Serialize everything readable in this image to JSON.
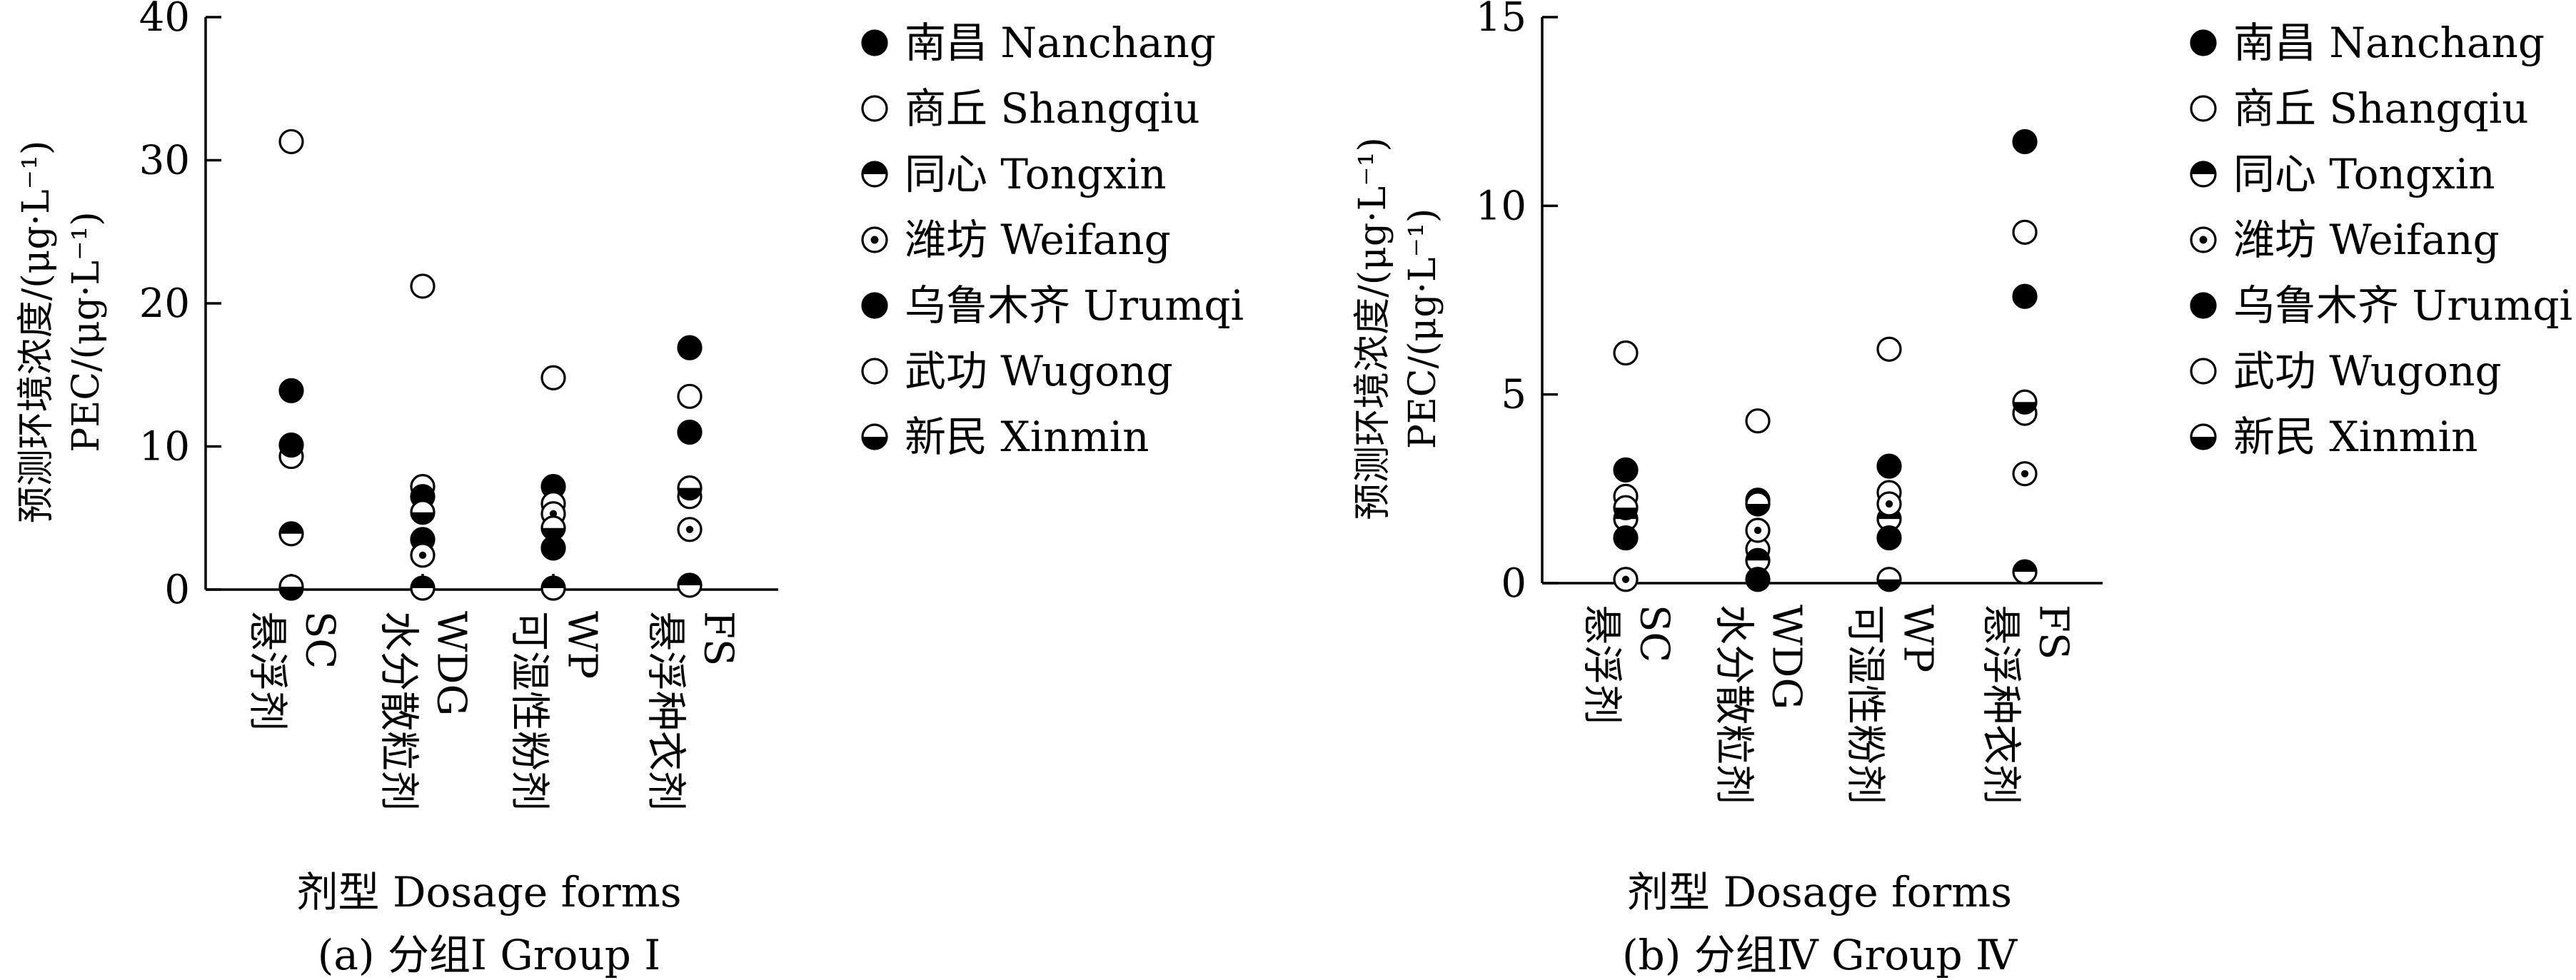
{
  "legend": [
    {
      "label": "南昌 Nanchang",
      "marker": "filled"
    },
    {
      "label": "商丘 Shangqiu",
      "marker": "open"
    },
    {
      "label": "同心 Tongxin",
      "marker": "half-top-filled"
    },
    {
      "label": "潍坊 Weifang",
      "marker": "dot-center"
    },
    {
      "label": "乌鲁木齐 Urumqi",
      "marker": "filled"
    },
    {
      "label": "武功 Wugong",
      "marker": "open"
    },
    {
      "label": "新民 Xinmin",
      "marker": "half-bottom-filled"
    }
  ],
  "chart_data": [
    {
      "type": "scatter",
      "title": "(a) 分组I Group I",
      "xlabel": "剂型 Dosage forms",
      "ylabel": [
        "预测环境浓度/(μg·L⁻¹)",
        "PEC/(μg·L⁻¹)"
      ],
      "ylim": [
        0,
        40
      ],
      "yticks": [
        0,
        10,
        20,
        30,
        40
      ],
      "categories": [
        [
          "悬浮剂",
          "SC"
        ],
        [
          "水分散粒剂",
          "WDG"
        ],
        [
          "可湿性粉剂",
          "WP"
        ],
        [
          "悬浮种衣剂",
          "FS"
        ]
      ],
      "series": [
        {
          "name": "南昌 Nanchang",
          "values": [
            13.9,
            3.5,
            7.2,
            16.9
          ]
        },
        {
          "name": "商丘 Shangqiu",
          "values": [
            9.3,
            7.2,
            6.0,
            6.5
          ]
        },
        {
          "name": "同心 Tongxin",
          "values": [
            3.9,
            0.1,
            0.1,
            0.3
          ]
        },
        {
          "name": "潍坊 Weifang",
          "values": [
            0.1,
            2.4,
            5.3,
            4.2
          ]
        },
        {
          "name": "乌鲁木齐 Urumqi",
          "values": [
            10.1,
            6.5,
            2.9,
            11.0
          ]
        },
        {
          "name": "武功 Wugong",
          "values": [
            31.3,
            21.2,
            14.8,
            13.5
          ]
        },
        {
          "name": "新民 Xinmin",
          "values": [
            0.2,
            5.4,
            4.3,
            7.1
          ]
        }
      ]
    },
    {
      "type": "scatter",
      "title": "(b) 分组Ⅳ Group Ⅳ",
      "xlabel": "剂型 Dosage forms",
      "ylabel": [
        "预测环境浓度/(μg·L⁻¹)",
        "PEC/(μg·L⁻¹)"
      ],
      "ylim": [
        0,
        15
      ],
      "yticks": [
        0,
        5,
        10,
        15
      ],
      "categories": [
        [
          "悬浮剂",
          "SC"
        ],
        [
          "水分散粒剂",
          "WDG"
        ],
        [
          "可湿性粉剂",
          "WP"
        ],
        [
          "悬浮种衣剂",
          "FS"
        ]
      ],
      "series": [
        {
          "name": "南昌 Nanchang",
          "values": [
            3.0,
            2.2,
            3.1,
            11.7
          ]
        },
        {
          "name": "商丘 Shangqiu",
          "values": [
            2.3,
            0.9,
            2.4,
            4.5
          ]
        },
        {
          "name": "同心 Tongxin",
          "values": [
            1.7,
            0.6,
            1.7,
            0.3
          ]
        },
        {
          "name": "潍坊 Weifang",
          "values": [
            0.1,
            1.4,
            2.1,
            2.9
          ]
        },
        {
          "name": "乌鲁木齐 Urumqi",
          "values": [
            1.2,
            0.1,
            1.2,
            7.6
          ]
        },
        {
          "name": "武功 Wugong",
          "values": [
            6.1,
            4.3,
            6.2,
            9.3
          ]
        },
        {
          "name": "新民 Xinmin",
          "values": [
            2.0,
            2.1,
            0.1,
            4.8
          ]
        }
      ]
    }
  ]
}
